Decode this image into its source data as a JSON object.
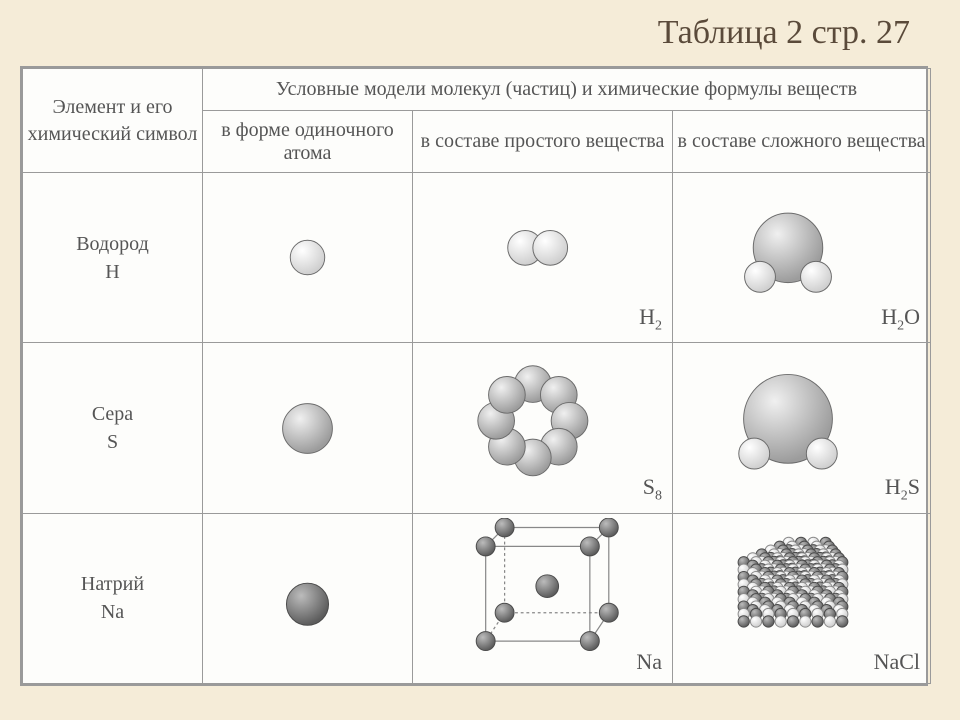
{
  "title": "Таблица 2 стр. 27",
  "columns": {
    "corner": "Элемент и его химический символ",
    "group_header": "Условные модели молекул (частиц) и химические формулы веществ",
    "c1": "в форме одиночного атома",
    "c2": "в составе простого вещества",
    "c3": "в составе сложного вещества"
  },
  "rows": {
    "r1": {
      "name": "Водород",
      "symbol": "H",
      "f2": "H",
      "f2sub": "2",
      "f3": "H",
      "f3sub": "2",
      "f3suffix": "O"
    },
    "r2": {
      "name": "Сера",
      "symbol": "S",
      "f2": "S",
      "f2sub": "8",
      "f3": "H",
      "f3sub": "2",
      "f3suffix": "S"
    },
    "r3": {
      "name": "Натрий",
      "symbol": "Na",
      "f2": "Na",
      "f2sub": "",
      "f3": "NaCl",
      "f3sub": "",
      "f3suffix": ""
    }
  },
  "colors": {
    "stroke": "#6b6b6b",
    "atom_light": "#e8e8e8",
    "atom_mid": "#b8b8b8",
    "atom_dark": "#7a7a7a",
    "lattice_line": "#888888"
  },
  "radii": {
    "rH": 16,
    "rS": 26,
    "rNa": 20,
    "rBigS": 46,
    "rCl": 10
  }
}
